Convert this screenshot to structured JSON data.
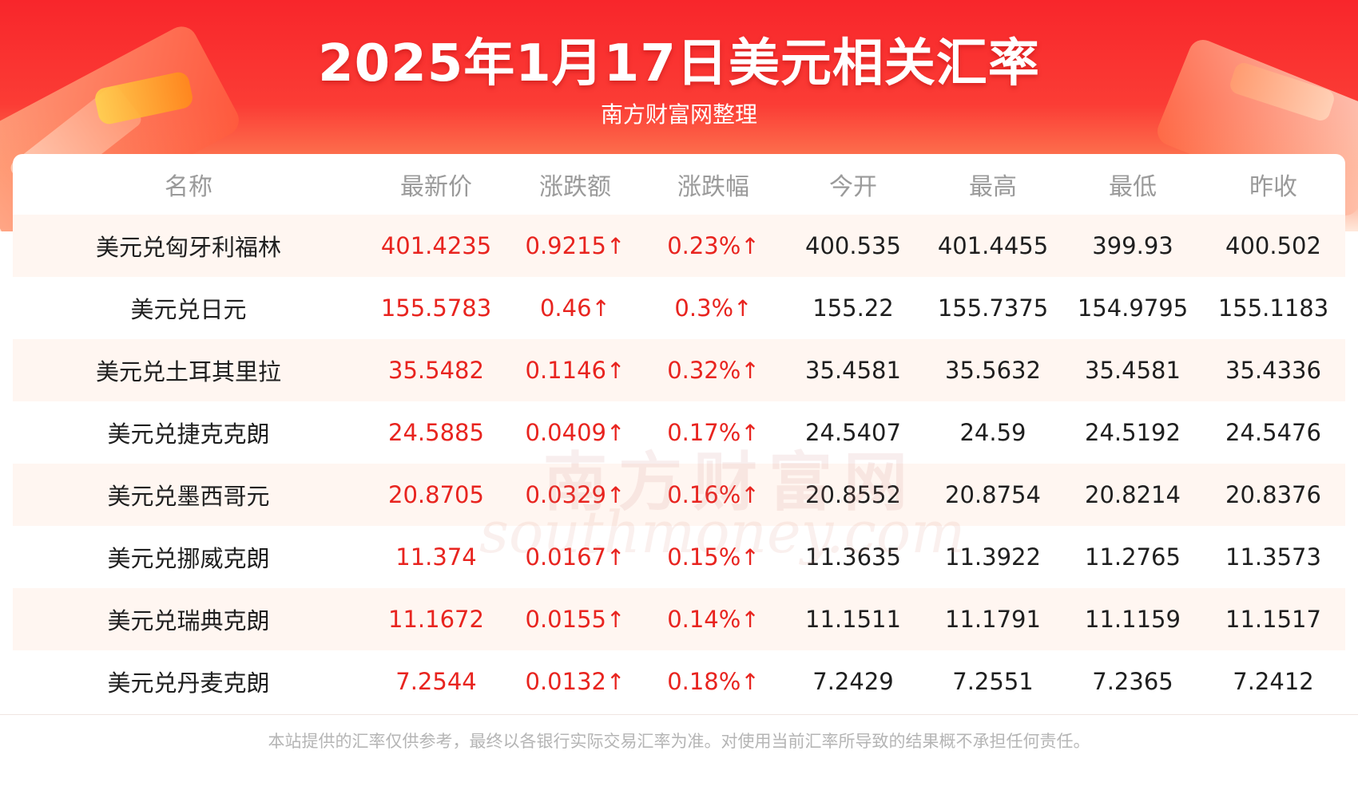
{
  "header": {
    "title": "2025年1月17日美元相关汇率",
    "subtitle": "南方财富网整理"
  },
  "table": {
    "columns": [
      "名称",
      "最新价",
      "涨跌额",
      "涨跌幅",
      "今开",
      "最高",
      "最低",
      "昨收"
    ],
    "rows": [
      {
        "name": "美元兑匈牙利福林",
        "latest": "401.4235",
        "change": "0.9215",
        "pct": "0.23%",
        "open": "400.535",
        "high": "401.4455",
        "low": "399.93",
        "prev": "400.502"
      },
      {
        "name": "美元兑日元",
        "latest": "155.5783",
        "change": "0.46",
        "pct": "0.3%",
        "open": "155.22",
        "high": "155.7375",
        "low": "154.9795",
        "prev": "155.1183"
      },
      {
        "name": "美元兑土耳其里拉",
        "latest": "35.5482",
        "change": "0.1146",
        "pct": "0.32%",
        "open": "35.4581",
        "high": "35.5632",
        "low": "35.4581",
        "prev": "35.4336"
      },
      {
        "name": "美元兑捷克克朗",
        "latest": "24.5885",
        "change": "0.0409",
        "pct": "0.17%",
        "open": "24.5407",
        "high": "24.59",
        "low": "24.5192",
        "prev": "24.5476"
      },
      {
        "name": "美元兑墨西哥元",
        "latest": "20.8705",
        "change": "0.0329",
        "pct": "0.16%",
        "open": "20.8552",
        "high": "20.8754",
        "low": "20.8214",
        "prev": "20.8376"
      },
      {
        "name": "美元兑挪威克朗",
        "latest": "11.374",
        "change": "0.0167",
        "pct": "0.15%",
        "open": "11.3635",
        "high": "11.3922",
        "low": "11.2765",
        "prev": "11.3573"
      },
      {
        "name": "美元兑瑞典克朗",
        "latest": "11.1672",
        "change": "0.0155",
        "pct": "0.14%",
        "open": "11.1511",
        "high": "11.1791",
        "low": "11.1159",
        "prev": "11.1517"
      },
      {
        "name": "美元兑丹麦克朗",
        "latest": "7.2544",
        "change": "0.0132",
        "pct": "0.18%",
        "open": "7.2429",
        "high": "7.2551",
        "low": "7.2365",
        "prev": "7.2412"
      }
    ],
    "up_arrow": "↑"
  },
  "watermark": {
    "cn": "南方财富网",
    "en": "southmoney.com"
  },
  "footer": {
    "disclaimer": "本站提供的汇率仅供参考，最终以各银行实际交易汇率为准。对使用当前汇率所导致的结果概不承担任何责任。"
  },
  "colors": {
    "banner_red": "#f8262b",
    "up_red": "#e8241f",
    "row_shade": "#fff6f1",
    "header_gray": "#9a9a9a"
  }
}
